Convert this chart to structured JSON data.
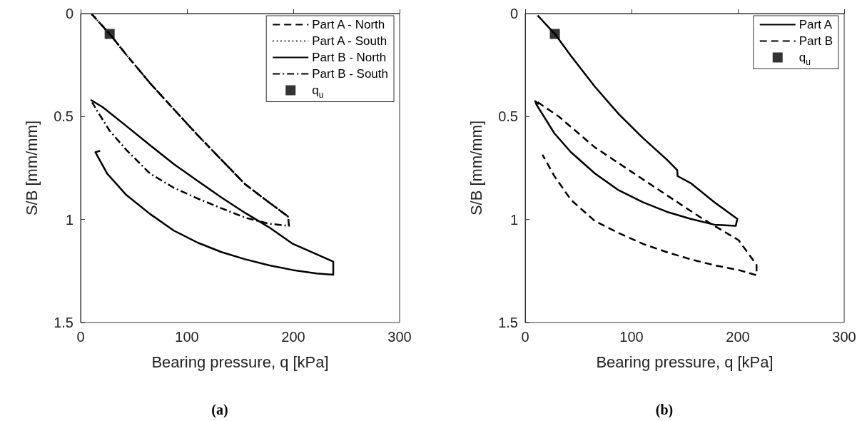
{
  "chart_data": [
    {
      "type": "line",
      "xlabel": "Bearing pressure, q [kPa]",
      "ylabel": "S/B [mm/mm]",
      "annotations": [
        "(a)"
      ],
      "xlim": [
        0,
        300
      ],
      "xticks": [
        0,
        100,
        200,
        300
      ],
      "ylim": [
        1.5,
        0
      ],
      "yticks": [
        0,
        0.5,
        1,
        1.5
      ],
      "grid": false,
      "legend": "top right",
      "series": [
        {
          "name": "Part A - North",
          "color": "#000000",
          "line_style": "dashed",
          "x": [
            10.5,
            27.3,
            43,
            65.3,
            87.7,
            110,
            132.4,
            154.8,
            177,
            195
          ],
          "values": [
            0.003,
            0.099,
            0.2,
            0.338,
            0.465,
            0.59,
            0.71,
            0.829,
            0.916,
            0.985
          ]
        },
        {
          "name": "Part A - South",
          "color": "#000000",
          "line_style": "dotted",
          "x": [
            10.5,
            27.3,
            43,
            65.3,
            87.7,
            110,
            132.4,
            154.8,
            177,
            195,
            196
          ],
          "values": [
            0.003,
            0.099,
            0.2,
            0.338,
            0.465,
            0.59,
            0.71,
            0.829,
            0.916,
            0.985,
            1.031
          ]
        },
        {
          "name": "Part B - North",
          "color": "#000000",
          "line_style": "solid",
          "x": [
            9.4,
            20.6,
            43,
            65.3,
            87.7,
            110,
            132.4,
            154.8,
            177,
            199.5,
            237.6,
            237.6,
            222,
            199.5,
            177,
            154.8,
            132.4,
            110,
            87.7,
            65.3,
            43,
            25,
            13.9,
            18.3
          ],
          "values": [
            0.419,
            0.454,
            0.546,
            0.639,
            0.731,
            0.812,
            0.893,
            0.968,
            1.037,
            1.118,
            1.204,
            1.268,
            1.262,
            1.245,
            1.222,
            1.193,
            1.158,
            1.112,
            1.054,
            0.973,
            0.881,
            0.777,
            0.673,
            0.667
          ]
        },
        {
          "name": "Part B - South",
          "color": "#000000",
          "line_style": "dashdot",
          "x": [
            10.5,
            27.3,
            43,
            65.3,
            87.7,
            110,
            132.4,
            154.8,
            177,
            195,
            196,
            177,
            154.8,
            132.4,
            110,
            87.7,
            65.3,
            43,
            27.3,
            16.1,
            10.8
          ],
          "values": [
            0.003,
            0.099,
            0.2,
            0.338,
            0.465,
            0.59,
            0.71,
            0.829,
            0.916,
            0.985,
            1.031,
            1.02,
            0.991,
            0.945,
            0.898,
            0.846,
            0.777,
            0.662,
            0.569,
            0.477,
            0.431
          ]
        },
        {
          "name": "q$_{u}$",
          "type": "scatter",
          "marker": "square",
          "color": "#000000",
          "x": [
            27.3
          ],
          "values": [
            0.099
          ]
        }
      ]
    },
    {
      "type": "line",
      "xlabel": "Bearing pressure, q [kPa]",
      "ylabel": "S/B [mm/mm]",
      "annotations": [
        "(b)"
      ],
      "xlim": [
        0,
        300
      ],
      "xticks": [
        0,
        100,
        200,
        300
      ],
      "ylim": [
        1.5,
        0
      ],
      "yticks": [
        0,
        0.5,
        1,
        1.5
      ],
      "grid": false,
      "legend": "top right",
      "series": [
        {
          "name": "Part A",
          "color": "#000000",
          "line_style": "solid",
          "x": [
            11.7,
            27.9,
            43,
            65.7,
            88,
            110.7,
            133,
            143,
            143.3,
            155.6,
            178,
            199.5,
            198,
            178,
            155.6,
            133,
            110.7,
            88,
            65.7,
            43,
            27.4,
            16.2,
            10.6,
            9.4,
            12.8
          ],
          "values": [
            0.009,
            0.099,
            0.205,
            0.356,
            0.488,
            0.604,
            0.708,
            0.76,
            0.789,
            0.823,
            0.916,
            0.997,
            1.031,
            1.025,
            0.997,
            0.962,
            0.916,
            0.858,
            0.777,
            0.673,
            0.581,
            0.488,
            0.442,
            0.425,
            0.44
          ]
        },
        {
          "name": "Part B",
          "color": "#000000",
          "line_style": "dashed",
          "x": [
            11.7,
            31.6,
            65.7,
            99.4,
            133,
            167,
            200.7,
            217.6,
            217.6,
            200.7,
            178,
            155.6,
            133,
            110.7,
            88,
            65.7,
            43,
            27.4,
            16.2
          ],
          "values": [
            0.43,
            0.5,
            0.65,
            0.766,
            0.881,
            0.997,
            1.1,
            1.22,
            1.27,
            1.245,
            1.222,
            1.193,
            1.158,
            1.118,
            1.066,
            1.008,
            0.904,
            0.789,
            0.685
          ]
        },
        {
          "name": "q$_{u}$",
          "type": "scatter",
          "marker": "square",
          "color": "#000000",
          "x": [
            27.9
          ],
          "values": [
            0.099
          ]
        }
      ]
    }
  ]
}
